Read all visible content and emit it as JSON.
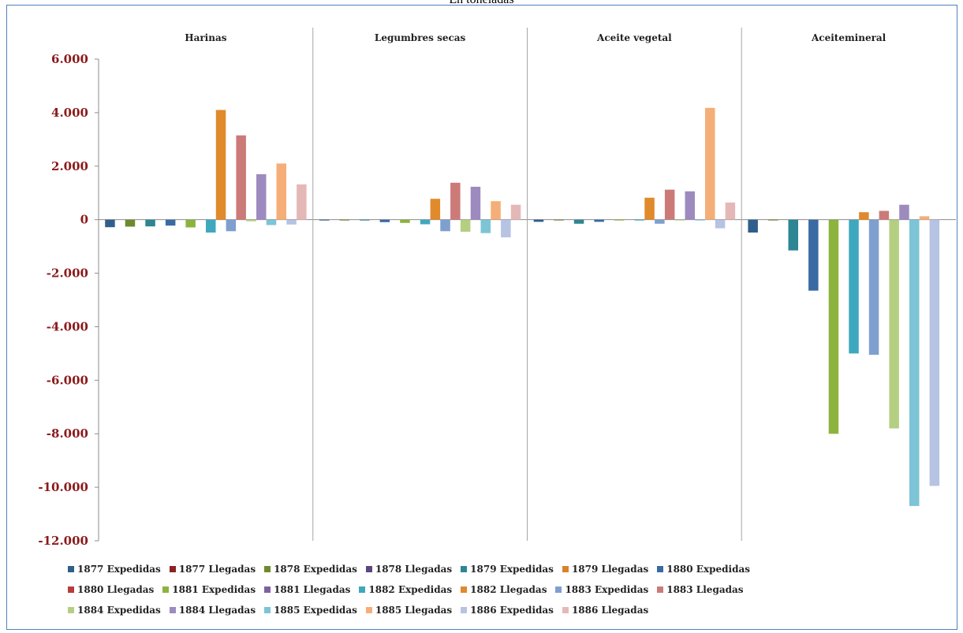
{
  "subtitle": "En toneladas",
  "chart_data": {
    "type": "bar",
    "categories": [
      "Harinas",
      "Legumbres secas",
      "Aceite vegetal",
      "Aceite mineral"
    ],
    "category_titles": [
      "Harinas",
      "Legumbres secas",
      "Aceite vegetal",
      "Aceitemineral"
    ],
    "ylim": [
      -12000,
      6000
    ],
    "yticks": [
      6000,
      4000,
      2000,
      0,
      -2000,
      -4000,
      -6000,
      -8000,
      -10000,
      -12000
    ],
    "ytick_labels": [
      "6.000",
      "4.000",
      "2.000",
      "0",
      "-2.000",
      "-4.000",
      "-6.000",
      "-8.000",
      "-10.000",
      "-12.000"
    ],
    "grid": false,
    "legend_position": "bottom",
    "series": [
      {
        "name": "1877 Expedidas",
        "color": "#2f5f8a",
        "values": [
          -280,
          -20,
          -80,
          -480
        ]
      },
      {
        "name": "1877 Llegadas",
        "color": "#8b2323",
        "values": [
          0,
          0,
          0,
          0
        ]
      },
      {
        "name": "1878 Expedidas",
        "color": "#6f8a2e",
        "values": [
          -260,
          -10,
          -10,
          -10
        ]
      },
      {
        "name": "1878 Llegadas",
        "color": "#5c4680",
        "values": [
          0,
          0,
          0,
          0
        ]
      },
      {
        "name": "1879 Expedidas",
        "color": "#2e8593",
        "values": [
          -250,
          -20,
          -150,
          -1150
        ]
      },
      {
        "name": "1879 Llegadas",
        "color": "#d9822b",
        "values": [
          0,
          0,
          0,
          0
        ]
      },
      {
        "name": "1880 Expedidas",
        "color": "#3a6aa3",
        "values": [
          -220,
          -90,
          -80,
          -2650
        ]
      },
      {
        "name": "1880 Llegadas",
        "color": "#b73c3c",
        "values": [
          0,
          0,
          0,
          0
        ]
      },
      {
        "name": "1881 Expedidas",
        "color": "#8db33f",
        "values": [
          -290,
          -120,
          -20,
          -8000
        ]
      },
      {
        "name": "1881 Llegadas",
        "color": "#7d62a3",
        "values": [
          0,
          0,
          0,
          0
        ]
      },
      {
        "name": "1882 Expedidas",
        "color": "#3fa8be",
        "values": [
          -480,
          -170,
          -30,
          -5000
        ]
      },
      {
        "name": "1882 Llegadas",
        "color": "#e08a2c",
        "values": [
          4100,
          780,
          820,
          280
        ]
      },
      {
        "name": "1883 Expedidas",
        "color": "#7f9fcf",
        "values": [
          -430,
          -430,
          -150,
          -5050
        ]
      },
      {
        "name": "1883 Llegadas",
        "color": "#cc7a78",
        "values": [
          3150,
          1380,
          1120,
          330
        ]
      },
      {
        "name": "1884 Expedidas",
        "color": "#b4cf82",
        "values": [
          -60,
          -450,
          -30,
          -7800
        ]
      },
      {
        "name": "1884 Llegadas",
        "color": "#9d8bbf",
        "values": [
          1700,
          1230,
          1060,
          560
        ]
      },
      {
        "name": "1885 Expedidas",
        "color": "#7cc4d6",
        "values": [
          -200,
          -500,
          -20,
          -10700
        ]
      },
      {
        "name": "1885 Llegadas",
        "color": "#f5ae78",
        "values": [
          2100,
          690,
          4180,
          130
        ]
      },
      {
        "name": "1886 Expedidas",
        "color": "#b6c3e3",
        "values": [
          -180,
          -660,
          -320,
          -9950
        ]
      },
      {
        "name": "1886 Llegadas",
        "color": "#e5b8b8",
        "values": [
          1320,
          560,
          640,
          0
        ]
      }
    ]
  }
}
